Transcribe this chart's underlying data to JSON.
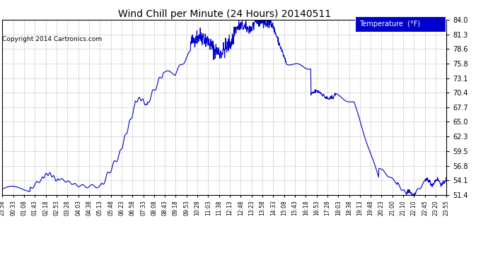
{
  "title": "Wind Chill per Minute (24 Hours) 20140511",
  "copyright": "Copyright 2014 Cartronics.com",
  "legend_label": "Temperature  (°F)",
  "line_color": "#0000CC",
  "bg_color": "#ffffff",
  "plot_bg_color": "#ffffff",
  "grid_color": "#aaaaaa",
  "ylim": [
    51.4,
    84.0
  ],
  "yticks": [
    51.4,
    54.1,
    56.8,
    59.5,
    62.3,
    65.0,
    67.7,
    70.4,
    73.1,
    75.8,
    78.6,
    81.3,
    84.0
  ],
  "xtick_labels": [
    "23:58",
    "00:33",
    "01:08",
    "01:43",
    "02:18",
    "02:53",
    "03:28",
    "04:03",
    "04:38",
    "05:13",
    "05:48",
    "06:23",
    "06:58",
    "07:33",
    "08:08",
    "08:43",
    "09:18",
    "09:53",
    "10:28",
    "11:03",
    "11:38",
    "12:13",
    "12:48",
    "13:23",
    "13:58",
    "14:33",
    "15:08",
    "15:43",
    "16:18",
    "16:53",
    "17:28",
    "18:03",
    "18:38",
    "19:13",
    "19:48",
    "20:23",
    "21:00",
    "21:10",
    "22:10",
    "22:45",
    "23:20",
    "23:55"
  ],
  "num_points": 1440
}
